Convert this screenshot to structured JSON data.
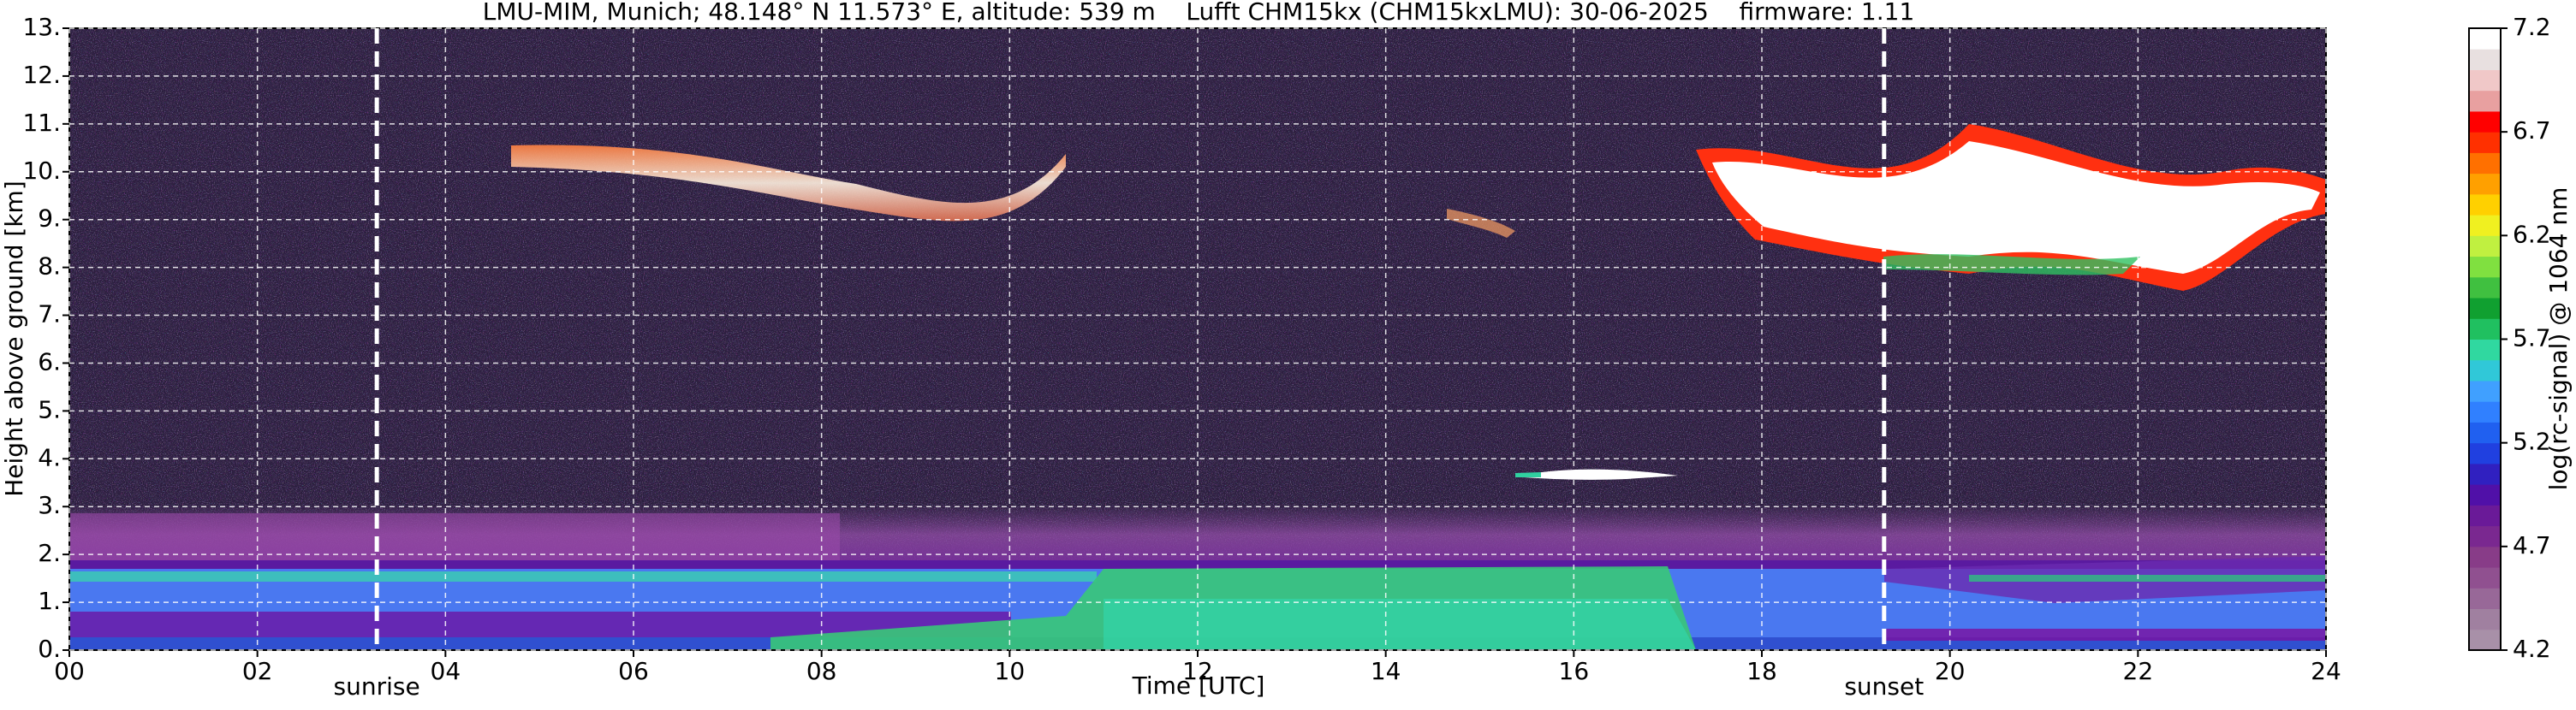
{
  "chart_data": {
    "type": "heatmap",
    "title": "LMU-MIM, Munich; 48.148° N 11.573° E, altitude: 539 m    Lufft CHM15kx (CHM15kxLMU): 30-06-2025    firmware: 1.11",
    "xlabel": "Time [UTC]",
    "ylabel": "Height above ground [km]",
    "xlim": [
      0,
      24
    ],
    "xticks": [
      {
        "value": 0,
        "label": "00"
      },
      {
        "value": 2,
        "label": "02"
      },
      {
        "value": 4,
        "label": "04"
      },
      {
        "value": 6,
        "label": "06"
      },
      {
        "value": 8,
        "label": "08"
      },
      10,
      12,
      14,
      16,
      18,
      20,
      22,
      24
    ],
    "ylim": [
      0,
      13
    ],
    "yticks": [
      {
        "value": 0,
        "label": "0."
      },
      {
        "value": 1,
        "label": "1."
      },
      {
        "value": 2,
        "label": "2."
      },
      {
        "value": 3,
        "label": "3."
      },
      {
        "value": 4,
        "label": "4."
      },
      {
        "value": 5,
        "label": "5."
      },
      {
        "value": 6,
        "label": "6."
      },
      {
        "value": 7,
        "label": "7."
      },
      {
        "value": 8,
        "label": "8."
      },
      {
        "value": 9,
        "label": "9."
      },
      {
        "value": 10,
        "label": "10."
      },
      {
        "value": 11,
        "label": "11."
      },
      {
        "value": 12,
        "label": "12."
      },
      {
        "value": 13,
        "label": "13."
      }
    ],
    "grid": true,
    "markers": [
      {
        "label": "sunrise",
        "x": 3.27
      },
      {
        "label": "sunset",
        "x": 19.3
      }
    ],
    "colorbar": {
      "label": "log(rc-signal) @ 1064 nm",
      "lim": [
        4.2,
        7.2
      ],
      "ticks": [
        4.2,
        4.7,
        5.2,
        5.7,
        6.2,
        6.7,
        7.2
      ],
      "colors": [
        "#a890a8",
        "#a080a0",
        "#986898",
        "#905090",
        "#883c88",
        "#7a2890",
        "#6a1a98",
        "#5010a8",
        "#3020c0",
        "#2040e0",
        "#2060f0",
        "#3080ff",
        "#40a0ff",
        "#30c8d8",
        "#30d8a0",
        "#20c060",
        "#10a030",
        "#40c040",
        "#80e040",
        "#c0f040",
        "#f0f020",
        "#ffd000",
        "#ffa000",
        "#ff7000",
        "#ff3000",
        "#ff0000",
        "#e8a0a0",
        "#f0c8c8",
        "#e8e0e0",
        "#ffffff"
      ]
    }
  }
}
